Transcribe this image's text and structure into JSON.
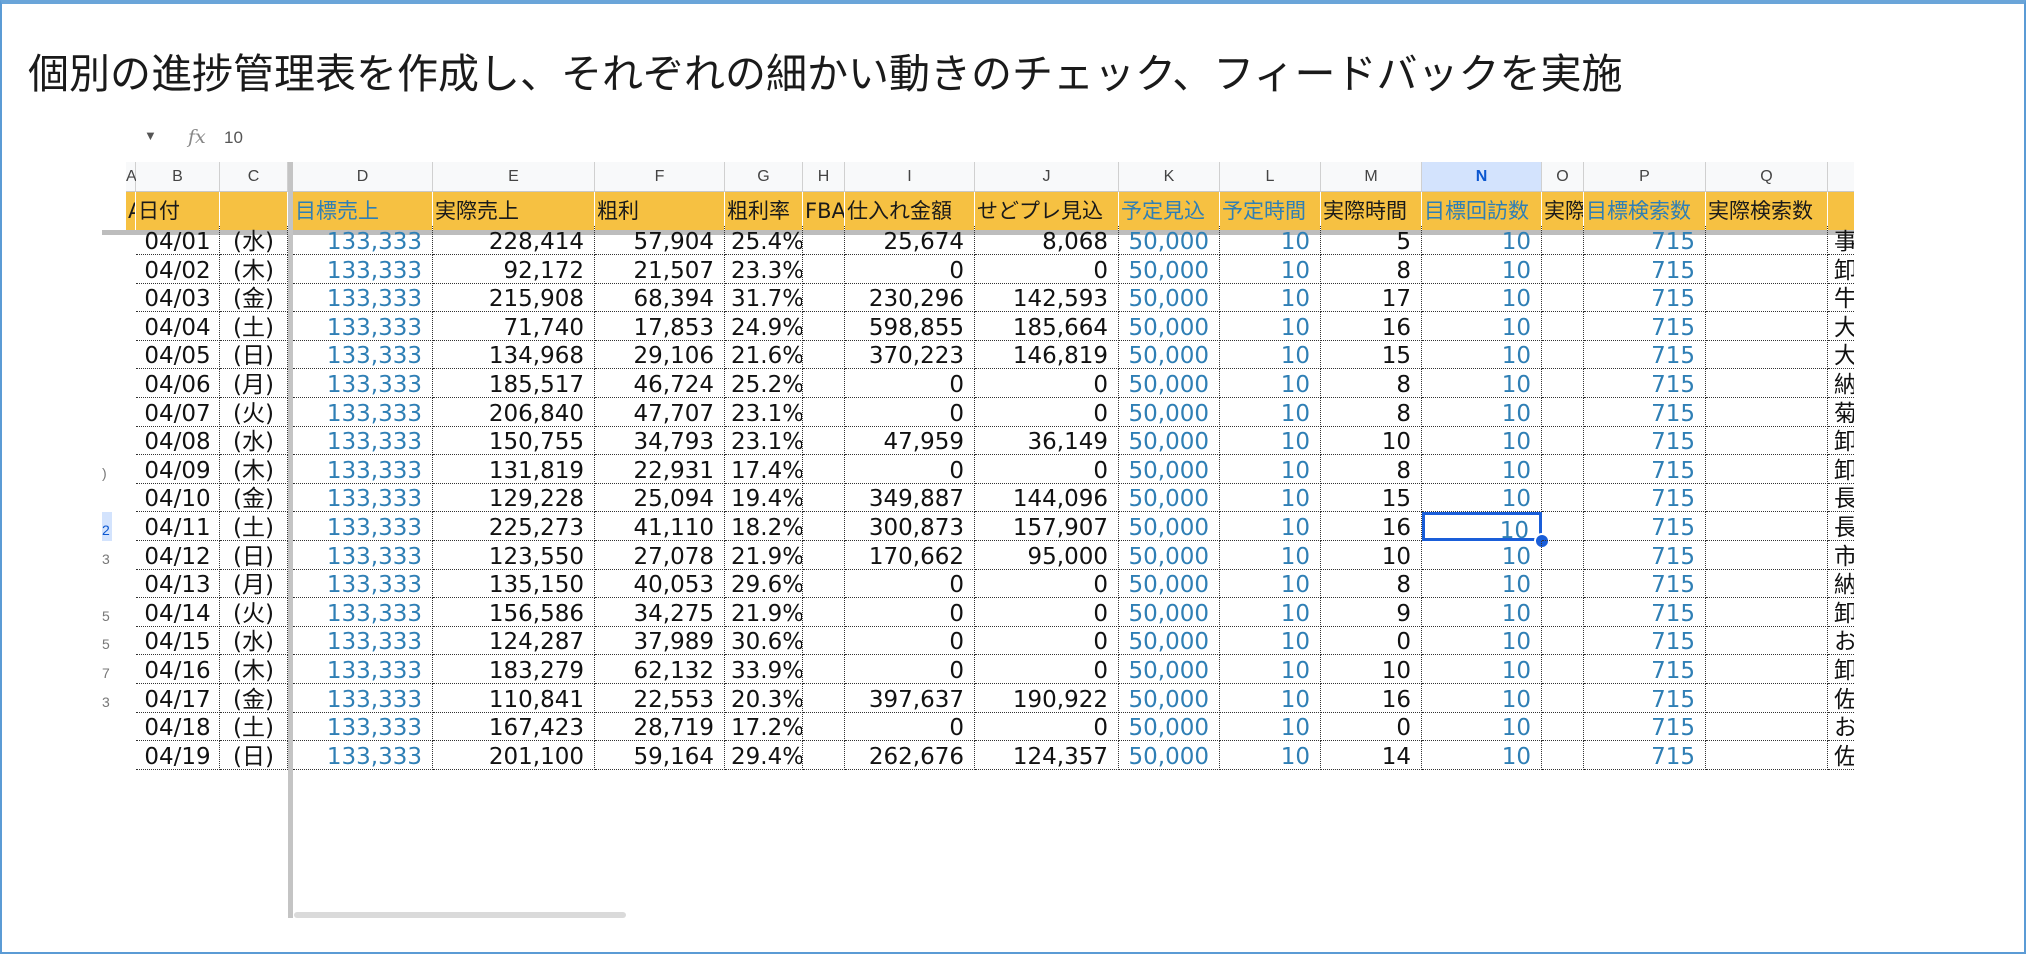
{
  "slide": {
    "title": "個別の進捗管理表を作成し、それぞれの細かい動きのチェック、フィードバックを実施"
  },
  "formula_bar": {
    "fx_label": "fx",
    "value": "10"
  },
  "colors": {
    "header_bg": "#f6c142",
    "blue_text": "#2f7fb5",
    "selection": "#1a5ed9",
    "frame_border": "#5b9bd5"
  },
  "column_letters": [
    "",
    "A",
    "B",
    "C",
    "D",
    "E",
    "F",
    "G",
    "H",
    "I",
    "J",
    "K",
    "L",
    "M",
    "N",
    "O",
    "P",
    "Q"
  ],
  "header_labels": [
    "",
    "A",
    "日付",
    "",
    "目標売上",
    "実際売上",
    "粗利",
    "粗利率",
    "FBA",
    "仕入れ金額",
    "せどプレ見込",
    "予定見込",
    "予定時間",
    "実際時間",
    "目標回訪数",
    "実際",
    "目標検索数",
    "実際検索数"
  ],
  "rows": [
    {
      "rownum": "",
      "date": "04/01",
      "dow": "(水)",
      "target_sales": "133,333",
      "actual_sales": "228,414",
      "gross": "57,904",
      "rate": "25.4%",
      "purchase": "25,674",
      "sedopre": "8,068",
      "plan": "50,000",
      "plan_h": "10",
      "actual_h": "5",
      "target_visits": "10",
      "target_search": "715",
      "note": "事務"
    },
    {
      "rownum": "",
      "date": "04/02",
      "dow": "(木)",
      "target_sales": "133,333",
      "actual_sales": "92,172",
      "gross": "21,507",
      "rate": "23.3%",
      "purchase": "0",
      "sedopre": "0",
      "plan": "50,000",
      "plan_h": "10",
      "actual_h": "8",
      "target_visits": "10",
      "target_search": "715",
      "note": "卸"
    },
    {
      "rownum": "",
      "date": "04/03",
      "dow": "(金)",
      "target_sales": "133,333",
      "actual_sales": "215,908",
      "gross": "68,394",
      "rate": "31.7%",
      "purchase": "230,296",
      "sedopre": "142,593",
      "plan": "50,000",
      "plan_h": "10",
      "actual_h": "17",
      "target_visits": "10",
      "target_search": "715",
      "note": "牛深"
    },
    {
      "rownum": "",
      "date": "04/04",
      "dow": "(土)",
      "target_sales": "133,333",
      "actual_sales": "71,740",
      "gross": "17,853",
      "rate": "24.9%",
      "purchase": "598,855",
      "sedopre": "185,664",
      "plan": "50,000",
      "plan_h": "10",
      "actual_h": "16",
      "target_visits": "10",
      "target_search": "715",
      "note": "大分"
    },
    {
      "rownum": "",
      "date": "04/05",
      "dow": "(日)",
      "target_sales": "133,333",
      "actual_sales": "134,968",
      "gross": "29,106",
      "rate": "21.6%",
      "purchase": "370,223",
      "sedopre": "146,819",
      "plan": "50,000",
      "plan_h": "10",
      "actual_h": "15",
      "target_visits": "10",
      "target_search": "715",
      "note": "大分"
    },
    {
      "rownum": "",
      "date": "04/06",
      "dow": "(月)",
      "target_sales": "133,333",
      "actual_sales": "185,517",
      "gross": "46,724",
      "rate": "25.2%",
      "purchase": "0",
      "sedopre": "0",
      "plan": "50,000",
      "plan_h": "10",
      "actual_h": "8",
      "target_visits": "10",
      "target_search": "715",
      "note": "納品"
    },
    {
      "rownum": "",
      "date": "04/07",
      "dow": "(火)",
      "target_sales": "133,333",
      "actual_sales": "206,840",
      "gross": "47,707",
      "rate": "23.1%",
      "purchase": "0",
      "sedopre": "0",
      "plan": "50,000",
      "plan_h": "10",
      "actual_h": "8",
      "target_visits": "10",
      "target_search": "715",
      "note": "菊陽"
    },
    {
      "rownum": "",
      "date": "04/08",
      "dow": "(水)",
      "target_sales": "133,333",
      "actual_sales": "150,755",
      "gross": "34,793",
      "rate": "23.1%",
      "purchase": "47,959",
      "sedopre": "36,149",
      "plan": "50,000",
      "plan_h": "10",
      "actual_h": "10",
      "target_visits": "10",
      "target_search": "715",
      "note": "卸"
    },
    {
      "rownum": ")",
      "date": "04/09",
      "dow": "(木)",
      "target_sales": "133,333",
      "actual_sales": "131,819",
      "gross": "22,931",
      "rate": "17.4%",
      "purchase": "0",
      "sedopre": "0",
      "plan": "50,000",
      "plan_h": "10",
      "actual_h": "8",
      "target_visits": "10",
      "target_search": "715",
      "note": "卸"
    },
    {
      "rownum": "",
      "date": "04/10",
      "dow": "(金)",
      "target_sales": "133,333",
      "actual_sales": "129,228",
      "gross": "25,094",
      "rate": "19.4%",
      "purchase": "349,887",
      "sedopre": "144,096",
      "plan": "50,000",
      "plan_h": "10",
      "actual_h": "15",
      "target_visits": "10",
      "target_search": "715",
      "note": "長崎"
    },
    {
      "rownum": "2",
      "date": "04/11",
      "dow": "(土)",
      "target_sales": "133,333",
      "actual_sales": "225,273",
      "gross": "41,110",
      "rate": "18.2%",
      "purchase": "300,873",
      "sedopre": "157,907",
      "plan": "50,000",
      "plan_h": "10",
      "actual_h": "16",
      "target_visits": "10",
      "target_search": "715",
      "note": "長崎"
    },
    {
      "rownum": "3",
      "date": "04/12",
      "dow": "(日)",
      "target_sales": "133,333",
      "actual_sales": "123,550",
      "gross": "27,078",
      "rate": "21.9%",
      "purchase": "170,662",
      "sedopre": "95,000",
      "plan": "50,000",
      "plan_h": "10",
      "actual_h": "10",
      "target_visits": "10",
      "target_search": "715",
      "note": "市内"
    },
    {
      "rownum": "",
      "date": "04/13",
      "dow": "(月)",
      "target_sales": "133,333",
      "actual_sales": "135,150",
      "gross": "40,053",
      "rate": "29.6%",
      "purchase": "0",
      "sedopre": "0",
      "plan": "50,000",
      "plan_h": "10",
      "actual_h": "8",
      "target_visits": "10",
      "target_search": "715",
      "note": "納品"
    },
    {
      "rownum": "5",
      "date": "04/14",
      "dow": "(火)",
      "target_sales": "133,333",
      "actual_sales": "156,586",
      "gross": "34,275",
      "rate": "21.9%",
      "purchase": "0",
      "sedopre": "0",
      "plan": "50,000",
      "plan_h": "10",
      "actual_h": "9",
      "target_visits": "10",
      "target_search": "715",
      "note": "卸"
    },
    {
      "rownum": "5",
      "date": "04/15",
      "dow": "(水)",
      "target_sales": "133,333",
      "actual_sales": "124,287",
      "gross": "37,989",
      "rate": "30.6%",
      "purchase": "0",
      "sedopre": "0",
      "plan": "50,000",
      "plan_h": "10",
      "actual_h": "0",
      "target_visits": "10",
      "target_search": "715",
      "note": "お休"
    },
    {
      "rownum": "7",
      "date": "04/16",
      "dow": "(木)",
      "target_sales": "133,333",
      "actual_sales": "183,279",
      "gross": "62,132",
      "rate": "33.9%",
      "purchase": "0",
      "sedopre": "0",
      "plan": "50,000",
      "plan_h": "10",
      "actual_h": "10",
      "target_visits": "10",
      "target_search": "715",
      "note": "卸"
    },
    {
      "rownum": "3",
      "date": "04/17",
      "dow": "(金)",
      "target_sales": "133,333",
      "actual_sales": "110,841",
      "gross": "22,553",
      "rate": "20.3%",
      "purchase": "397,637",
      "sedopre": "190,922",
      "plan": "50,000",
      "plan_h": "10",
      "actual_h": "16",
      "target_visits": "10",
      "target_search": "715",
      "note": "佐賀"
    },
    {
      "rownum": "",
      "date": "04/18",
      "dow": "(土)",
      "target_sales": "133,333",
      "actual_sales": "167,423",
      "gross": "28,719",
      "rate": "17.2%",
      "purchase": "0",
      "sedopre": "0",
      "plan": "50,000",
      "plan_h": "10",
      "actual_h": "0",
      "target_visits": "10",
      "target_search": "715",
      "note": "お休"
    },
    {
      "rownum": "",
      "date": "04/19",
      "dow": "(日)",
      "target_sales": "133,333",
      "actual_sales": "201,100",
      "gross": "59,164",
      "rate": "29.4%",
      "purchase": "262,676",
      "sedopre": "124,357",
      "plan": "50,000",
      "plan_h": "10",
      "actual_h": "14",
      "target_visits": "10",
      "target_search": "715",
      "note": "佐賀"
    }
  ]
}
